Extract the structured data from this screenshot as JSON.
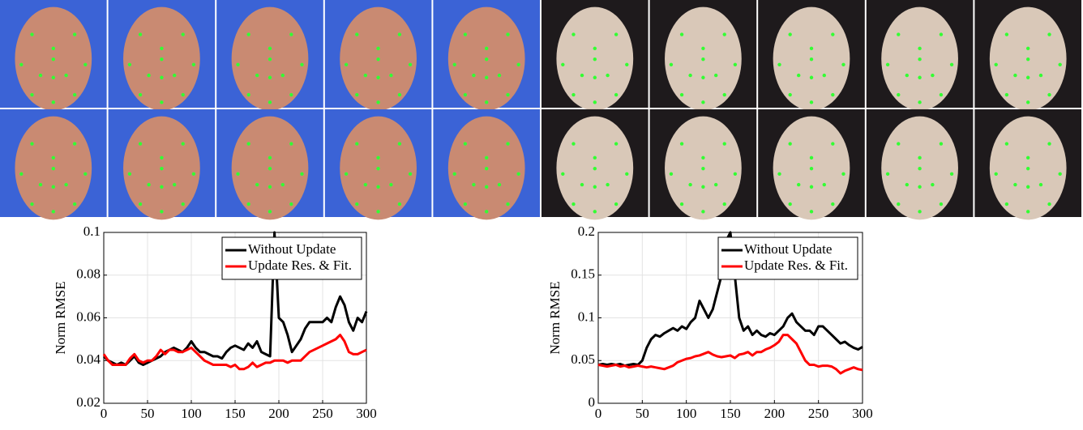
{
  "chart_data": [
    {
      "type": "line",
      "y_label": "Norm RMSE",
      "x": [
        0,
        5,
        10,
        15,
        20,
        25,
        30,
        35,
        40,
        45,
        50,
        55,
        60,
        65,
        70,
        75,
        80,
        85,
        90,
        95,
        100,
        105,
        110,
        115,
        120,
        125,
        130,
        135,
        140,
        145,
        150,
        155,
        160,
        165,
        170,
        175,
        180,
        185,
        190,
        195,
        200,
        205,
        210,
        215,
        220,
        225,
        230,
        235,
        240,
        245,
        250,
        255,
        260,
        265,
        270,
        275,
        280,
        285,
        290,
        295,
        300
      ],
      "xlim": [
        0,
        300
      ],
      "xticks": [
        0,
        50,
        100,
        150,
        200,
        250,
        300
      ],
      "ylim": [
        0.02,
        0.1
      ],
      "yticks": [
        0.02,
        0.04,
        0.06,
        0.08,
        0.1
      ],
      "grid": true,
      "legend": "upper right",
      "series": [
        {
          "name": "Without Update",
          "color": "#000000",
          "values": [
            0.042,
            0.04,
            0.039,
            0.038,
            0.039,
            0.038,
            0.04,
            0.042,
            0.039,
            0.038,
            0.039,
            0.04,
            0.041,
            0.042,
            0.044,
            0.045,
            0.046,
            0.045,
            0.044,
            0.046,
            0.049,
            0.046,
            0.044,
            0.044,
            0.043,
            0.042,
            0.042,
            0.041,
            0.044,
            0.046,
            0.047,
            0.046,
            0.045,
            0.048,
            0.046,
            0.049,
            0.044,
            0.043,
            0.042,
            0.1,
            0.06,
            0.058,
            0.052,
            0.044,
            0.047,
            0.05,
            0.055,
            0.058,
            0.058,
            0.058,
            0.058,
            0.06,
            0.058,
            0.065,
            0.07,
            0.066,
            0.058,
            0.054,
            0.06,
            0.058,
            0.063
          ]
        },
        {
          "name": "Update Res. & Fit.",
          "color": "#ff0000",
          "values": [
            0.043,
            0.04,
            0.038,
            0.038,
            0.038,
            0.038,
            0.041,
            0.043,
            0.04,
            0.039,
            0.04,
            0.04,
            0.042,
            0.045,
            0.043,
            0.045,
            0.045,
            0.044,
            0.044,
            0.045,
            0.046,
            0.044,
            0.042,
            0.04,
            0.039,
            0.038,
            0.038,
            0.038,
            0.038,
            0.037,
            0.038,
            0.036,
            0.036,
            0.037,
            0.039,
            0.037,
            0.038,
            0.039,
            0.039,
            0.04,
            0.04,
            0.04,
            0.039,
            0.04,
            0.04,
            0.04,
            0.042,
            0.044,
            0.045,
            0.046,
            0.047,
            0.048,
            0.049,
            0.05,
            0.052,
            0.049,
            0.044,
            0.043,
            0.043,
            0.044,
            0.045
          ]
        }
      ]
    },
    {
      "type": "line",
      "y_label": "Norm RMSE",
      "x": [
        0,
        5,
        10,
        15,
        20,
        25,
        30,
        35,
        40,
        45,
        50,
        55,
        60,
        65,
        70,
        75,
        80,
        85,
        90,
        95,
        100,
        105,
        110,
        115,
        120,
        125,
        130,
        135,
        140,
        145,
        150,
        155,
        160,
        165,
        170,
        175,
        180,
        185,
        190,
        195,
        200,
        205,
        210,
        215,
        220,
        225,
        230,
        235,
        240,
        245,
        250,
        255,
        260,
        265,
        270,
        275,
        280,
        285,
        290,
        295,
        300
      ],
      "xlim": [
        0,
        300
      ],
      "xticks": [
        0,
        50,
        100,
        150,
        200,
        250,
        300
      ],
      "ylim": [
        0,
        0.2
      ],
      "yticks": [
        0,
        0.05,
        0.1,
        0.15,
        0.2
      ],
      "grid": true,
      "legend": "upper right",
      "series": [
        {
          "name": "Without Update",
          "color": "#000000",
          "values": [
            0.045,
            0.046,
            0.045,
            0.046,
            0.045,
            0.046,
            0.044,
            0.045,
            0.046,
            0.045,
            0.05,
            0.065,
            0.075,
            0.08,
            0.078,
            0.082,
            0.085,
            0.088,
            0.085,
            0.09,
            0.087,
            0.095,
            0.1,
            0.12,
            0.11,
            0.1,
            0.11,
            0.13,
            0.15,
            0.19,
            0.2,
            0.15,
            0.1,
            0.085,
            0.09,
            0.08,
            0.085,
            0.08,
            0.078,
            0.082,
            0.08,
            0.085,
            0.09,
            0.1,
            0.105,
            0.095,
            0.09,
            0.085,
            0.085,
            0.08,
            0.09,
            0.09,
            0.085,
            0.08,
            0.075,
            0.07,
            0.072,
            0.068,
            0.065,
            0.063,
            0.066
          ]
        },
        {
          "name": "Update Res. & Fit.",
          "color": "#ff0000",
          "values": [
            0.045,
            0.044,
            0.043,
            0.044,
            0.045,
            0.043,
            0.044,
            0.042,
            0.043,
            0.044,
            0.043,
            0.042,
            0.043,
            0.042,
            0.041,
            0.04,
            0.042,
            0.044,
            0.048,
            0.05,
            0.052,
            0.053,
            0.055,
            0.056,
            0.058,
            0.06,
            0.057,
            0.055,
            0.054,
            0.055,
            0.056,
            0.053,
            0.057,
            0.058,
            0.06,
            0.056,
            0.06,
            0.06,
            0.063,
            0.065,
            0.068,
            0.072,
            0.08,
            0.08,
            0.075,
            0.07,
            0.06,
            0.05,
            0.045,
            0.045,
            0.043,
            0.044,
            0.044,
            0.043,
            0.04,
            0.035,
            0.038,
            0.04,
            0.042,
            0.04,
            0.039
          ]
        }
      ]
    }
  ]
}
